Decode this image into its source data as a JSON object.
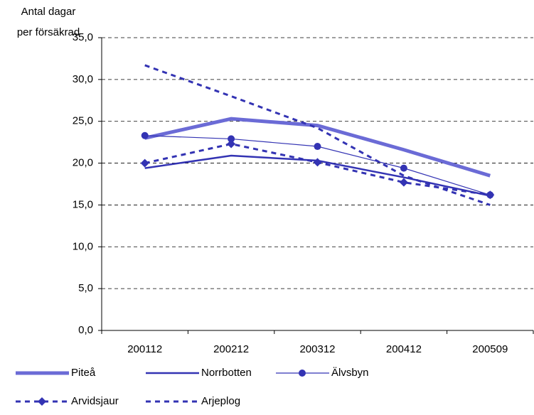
{
  "chart_data": {
    "type": "line",
    "ylabel": [
      "Antal dagar",
      "per försäkrad"
    ],
    "categories": [
      "200112",
      "200212",
      "200312",
      "200412",
      "200509"
    ],
    "series": [
      {
        "name": "Piteå",
        "color": "#6b6bd6",
        "width": 5,
        "dash": false,
        "marker": "none",
        "values": [
          23.0,
          25.3,
          24.5,
          21.6,
          18.5
        ]
      },
      {
        "name": "Norrbotten",
        "color": "#3333b3",
        "width": 2.5,
        "dash": false,
        "marker": "none",
        "values": [
          19.4,
          20.9,
          20.3,
          18.3,
          16.1
        ]
      },
      {
        "name": "Älvsbyn",
        "color": "#3333b3",
        "width": 1.2,
        "dash": false,
        "marker": "circle",
        "values": [
          23.3,
          22.9,
          22.0,
          19.4,
          16.2
        ]
      },
      {
        "name": "Arvidsjaur",
        "color": "#3333b3",
        "width": 3,
        "dash": true,
        "marker": "diamond",
        "values": [
          20.0,
          22.3,
          20.1,
          17.7,
          16.2
        ]
      },
      {
        "name": "Arjeplog",
        "color": "#3333b3",
        "width": 3,
        "dash": true,
        "marker": "none",
        "values": [
          31.7,
          28.0,
          24.2,
          18.5,
          15.0
        ]
      }
    ],
    "ylim": [
      0,
      35
    ],
    "yticks": [
      {
        "value": 0,
        "label": "0,0"
      },
      {
        "value": 5,
        "label": "5,0"
      },
      {
        "value": 10,
        "label": "10,0"
      },
      {
        "value": 15,
        "label": "15,0"
      },
      {
        "value": 20,
        "label": "20,0"
      },
      {
        "value": 25,
        "label": "25,0"
      },
      {
        "value": 30,
        "label": "30,0"
      },
      {
        "value": 35,
        "label": "35,0"
      }
    ],
    "grid": true
  }
}
